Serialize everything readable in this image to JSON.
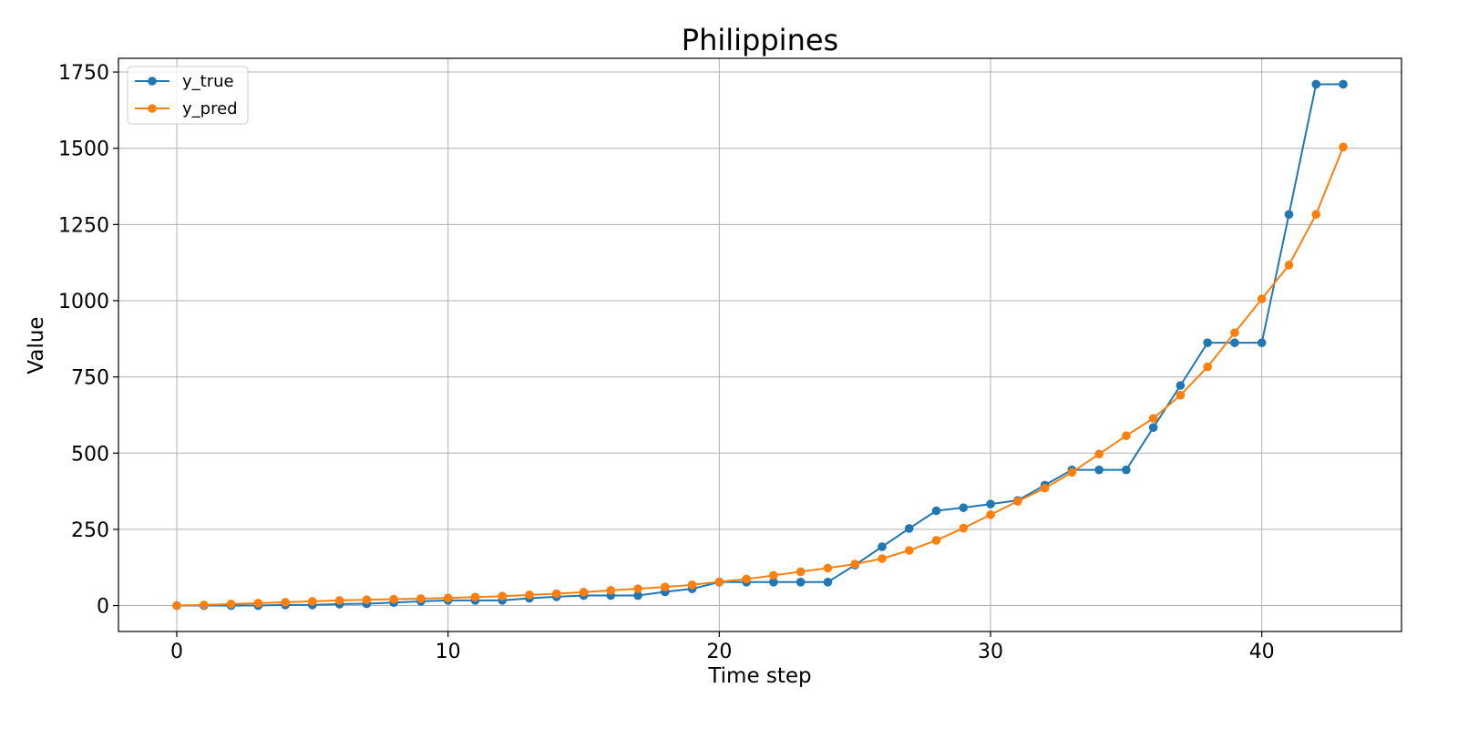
{
  "chart_data": {
    "type": "line",
    "title": "Philippines",
    "xlabel": "Time step",
    "ylabel": "Value",
    "xlim": [
      -2.15,
      45.15
    ],
    "ylim": [
      -85,
      1795
    ],
    "xticks": [
      0,
      10,
      20,
      30,
      40
    ],
    "yticks": [
      0,
      250,
      500,
      750,
      1000,
      1250,
      1500,
      1750
    ],
    "grid": true,
    "legend_position": "top-left",
    "x": [
      0,
      1,
      2,
      3,
      4,
      5,
      6,
      7,
      8,
      9,
      10,
      11,
      12,
      13,
      14,
      15,
      16,
      17,
      18,
      19,
      20,
      21,
      22,
      23,
      24,
      25,
      26,
      27,
      28,
      29,
      30,
      31,
      32,
      33,
      34,
      35,
      36,
      37,
      38,
      39,
      40,
      41,
      42,
      43
    ],
    "series": [
      {
        "name": "y_true",
        "color": "#1f77b4",
        "values": [
          0,
          0,
          0,
          0,
          2,
          2,
          5,
          6,
          10,
          14,
          17,
          17,
          17,
          24,
          29,
          33,
          33,
          33,
          45,
          55,
          77,
          77,
          77,
          77,
          77,
          133,
          193,
          253,
          311,
          321,
          333,
          345,
          395,
          445,
          445,
          445,
          584,
          722,
          862,
          862,
          862,
          1283,
          1710,
          1710
        ]
      },
      {
        "name": "y_pred",
        "color": "#ff7f0e",
        "values": [
          0,
          2,
          5,
          8,
          11,
          14,
          17,
          19,
          21,
          23,
          25,
          28,
          31,
          35,
          39,
          44,
          50,
          55,
          61,
          68,
          78,
          87,
          99,
          111,
          123,
          136,
          154,
          181,
          214,
          254,
          298,
          342,
          385,
          437,
          497,
          557,
          614,
          690,
          783,
          895,
          1006,
          1117,
          1283,
          1504
        ]
      }
    ]
  }
}
